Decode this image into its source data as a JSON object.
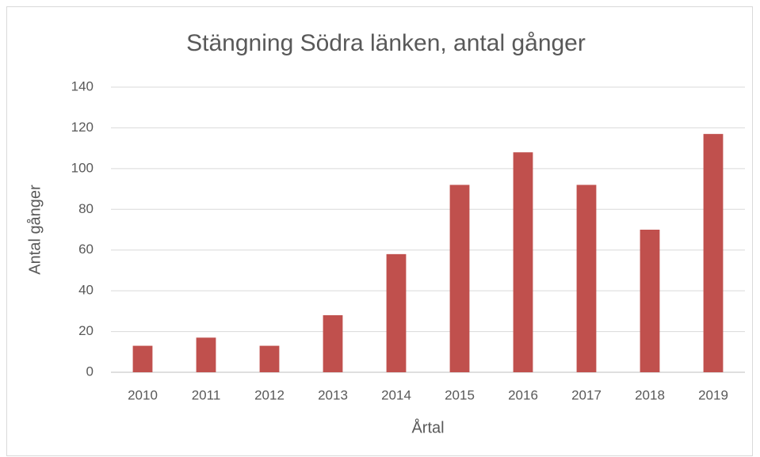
{
  "chart_data": {
    "type": "bar",
    "title": "Stängning Södra länken, antal gånger",
    "x_label": "Årtal",
    "y_label": "Antal gånger",
    "categories": [
      "2010",
      "2011",
      "2012",
      "2013",
      "2014",
      "2015",
      "2016",
      "2017",
      "2018",
      "2019"
    ],
    "values": [
      13,
      17,
      13,
      28,
      58,
      92,
      108,
      92,
      70,
      117
    ],
    "color": "#c0504d",
    "ylim": [
      0,
      140
    ],
    "yticks": [
      0,
      20,
      40,
      60,
      80,
      100,
      120,
      140
    ],
    "grid": true
  }
}
